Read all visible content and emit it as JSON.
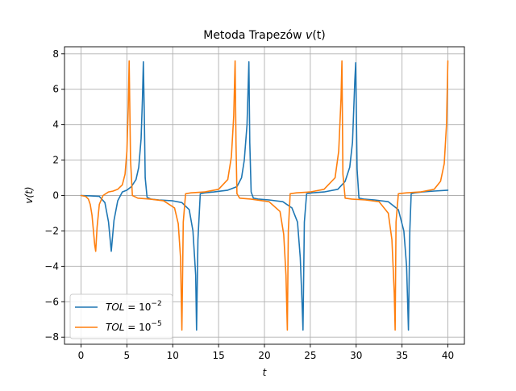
{
  "chart_data": {
    "type": "line",
    "title": "Metoda Trapezów v(t)",
    "title_parts": {
      "plain": "Metoda Trapezów ",
      "italic": "v",
      "after": "(t)"
    },
    "xlabel": "t",
    "ylabel": "v(t)",
    "xlim": [
      -1.8,
      41.8
    ],
    "ylim": [
      -8.4,
      8.4
    ],
    "x_ticks": [
      0,
      5,
      10,
      15,
      20,
      25,
      30,
      35,
      40
    ],
    "x_tick_labels": [
      "0",
      "5",
      "10",
      "15",
      "20",
      "25",
      "30",
      "35",
      "40"
    ],
    "y_ticks": [
      -8,
      -6,
      -4,
      -2,
      0,
      2,
      4,
      6,
      8
    ],
    "y_tick_labels": [
      "−8",
      "−6",
      "−4",
      "−2",
      "0",
      "2",
      "4",
      "6",
      "8"
    ],
    "grid": true,
    "legend_position": "lower-left",
    "series": [
      {
        "name": "TOL = 10^-2",
        "legend": {
          "var": "TOL",
          "eq": " = 10",
          "sup": "−2"
        },
        "color": "#1f77b4",
        "x": [
          0,
          1,
          2,
          2.6,
          3.0,
          3.3,
          3.6,
          4.0,
          4.5,
          5.0,
          5.5,
          6.0,
          6.3,
          6.55,
          6.7,
          6.8,
          6.9,
          7.0,
          7.2,
          7.6,
          8.5,
          10,
          11,
          11.8,
          12.2,
          12.5,
          12.6,
          12.75,
          13.0,
          13.5,
          14.5,
          16,
          17,
          17.5,
          17.8,
          18.1,
          18.3,
          18.4,
          18.55,
          18.8,
          19.3,
          20.5,
          22,
          23,
          23.6,
          23.9,
          24.1,
          24.2,
          24.35,
          24.6,
          25.2,
          26.5,
          28,
          28.8,
          29.3,
          29.6,
          29.85,
          29.95,
          30.1,
          30.3,
          30.8,
          32,
          33.5,
          34.6,
          35.2,
          35.5,
          35.7,
          35.85,
          36.0,
          36.4,
          37.2,
          38.5,
          40
        ],
        "y": [
          0,
          -0.02,
          -0.05,
          -0.4,
          -1.5,
          -3.15,
          -1.4,
          -0.3,
          0.2,
          0.3,
          0.5,
          0.9,
          1.6,
          3.2,
          5.5,
          7.55,
          4.5,
          1.0,
          -0.1,
          -0.2,
          -0.25,
          -0.3,
          -0.4,
          -0.8,
          -2.0,
          -4.5,
          -7.6,
          -2.5,
          0.1,
          0.15,
          0.2,
          0.3,
          0.5,
          1.0,
          2.0,
          4.0,
          7.55,
          3.0,
          0.2,
          -0.15,
          -0.2,
          -0.25,
          -0.35,
          -0.7,
          -1.5,
          -3.5,
          -6.0,
          -7.6,
          -1.5,
          0.1,
          0.15,
          0.2,
          0.35,
          0.8,
          1.6,
          3.0,
          6.5,
          7.5,
          1.5,
          -0.15,
          -0.2,
          -0.25,
          -0.35,
          -0.8,
          -2.0,
          -4.0,
          -7.6,
          -2.0,
          0.1,
          0.15,
          0.2,
          0.25,
          0.3
        ]
      },
      {
        "name": "TOL = 10^-5",
        "legend": {
          "var": "TOL",
          "eq": " = 10",
          "sup": "−5"
        },
        "color": "#ff7f0e",
        "x": [
          0,
          0.5,
          0.8,
          1.0,
          1.2,
          1.5,
          1.6,
          1.75,
          2.0,
          2.4,
          3.0,
          3.5,
          4.0,
          4.5,
          4.8,
          5.0,
          5.15,
          5.25,
          5.4,
          5.6,
          6.2,
          7.5,
          9,
          10.2,
          10.6,
          10.85,
          11.0,
          11.15,
          11.4,
          12,
          13.5,
          15,
          16,
          16.4,
          16.65,
          16.8,
          16.9,
          17.0,
          17.3,
          18.5,
          20.5,
          21.7,
          22.1,
          22.35,
          22.5,
          22.6,
          22.8,
          23.5,
          25,
          26.5,
          27.7,
          28.1,
          28.35,
          28.45,
          28.55,
          28.8,
          29.5,
          31,
          32.5,
          33.5,
          33.9,
          34.15,
          34.25,
          34.35,
          34.6,
          35.5,
          37,
          38.5,
          39.2,
          39.6,
          39.85,
          40.0
        ],
        "y": [
          0,
          -0.05,
          -0.2,
          -0.5,
          -1.1,
          -2.8,
          -3.15,
          -1.8,
          -0.5,
          0.0,
          0.2,
          0.25,
          0.35,
          0.6,
          1.2,
          2.5,
          5.0,
          7.6,
          2.0,
          0.0,
          -0.15,
          -0.2,
          -0.3,
          -0.7,
          -1.6,
          -3.5,
          -7.6,
          -1.5,
          0.1,
          0.15,
          0.2,
          0.35,
          0.9,
          2.2,
          4.5,
          7.6,
          3.0,
          0.1,
          -0.15,
          -0.2,
          -0.35,
          -0.9,
          -2.2,
          -4.5,
          -7.6,
          -2.0,
          0.1,
          0.15,
          0.2,
          0.35,
          1.0,
          2.5,
          5.5,
          7.6,
          1.2,
          -0.15,
          -0.2,
          -0.25,
          -0.35,
          -1.0,
          -2.5,
          -5.5,
          -7.6,
          -1.5,
          0.1,
          0.15,
          0.2,
          0.35,
          0.8,
          1.8,
          4.0,
          7.6
        ]
      }
    ]
  }
}
